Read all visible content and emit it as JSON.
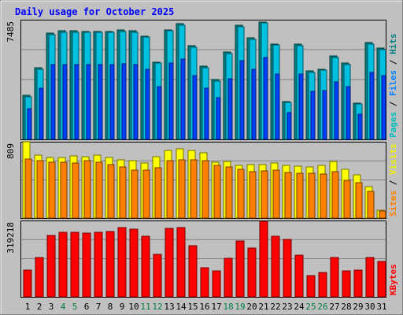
{
  "chart_data": {
    "type": "bar",
    "title": "Daily usage for October 2025",
    "days": [
      "1",
      "2",
      "3",
      "4",
      "5",
      "6",
      "7",
      "8",
      "9",
      "10",
      "11",
      "12",
      "13",
      "14",
      "15",
      "16",
      "17",
      "18",
      "19",
      "20",
      "21",
      "22",
      "23",
      "24",
      "25",
      "26",
      "27",
      "28",
      "29",
      "30",
      "31"
    ],
    "weekend_days": [
      "4",
      "5",
      "11",
      "12",
      "18",
      "19",
      "25",
      "26"
    ],
    "panels": [
      {
        "id": "hits",
        "max_label": "7485",
        "ymax": 7485,
        "right_label": [
          {
            "text": "Pages",
            "color": "#00c0c0"
          },
          {
            "text": " / ",
            "color": "#000000"
          },
          {
            "text": "Files",
            "color": "#0080ff"
          },
          {
            "text": " / ",
            "color": "#000000"
          },
          {
            "text": "Hits",
            "color": "#008080"
          }
        ],
        "series": [
          {
            "name": "Hits",
            "color": "#008080",
            "values": [
              2750,
              4490,
              6650,
              6780,
              6790,
              6770,
              6760,
              6760,
              6840,
              6780,
              6450,
              4850,
              6860,
              7230,
              5840,
              4590,
              3740,
              5470,
              7140,
              6350,
              7360,
              5960,
              2380,
              5950,
              4290,
              4390,
              5210,
              4780,
              2280,
              6040,
              5710
            ]
          },
          {
            "name": "Files",
            "color": "#00c0e0",
            "values": [
              2650,
              4390,
              6560,
              6700,
              6700,
              6680,
              6680,
              6680,
              6760,
              6700,
              6380,
              4760,
              6780,
              7140,
              5740,
              4500,
              3660,
              5380,
              7060,
              6270,
              7280,
              5890,
              2300,
              5860,
              4200,
              4310,
              5130,
              4690,
              2200,
              5960,
              5620
            ]
          },
          {
            "name": "Pages",
            "color": "#0040ff",
            "values": [
              1900,
              3200,
              4700,
              4700,
              4700,
              4700,
              4700,
              4700,
              4750,
              4700,
              4400,
              3300,
              4800,
              5000,
              4000,
              3200,
              2600,
              3800,
              4900,
              4400,
              5100,
              4100,
              1650,
              4100,
              3000,
              3050,
              3600,
              3300,
              1600,
              4200,
              4000
            ]
          }
        ]
      },
      {
        "id": "visits",
        "max_label": "809",
        "ymax": 809,
        "right_label": [
          {
            "text": "Sites",
            "color": "#ff8000"
          },
          {
            "text": " / ",
            "color": "#000000"
          },
          {
            "text": "Visits",
            "color": "#f0f000"
          }
        ],
        "series": [
          {
            "name": "Visits",
            "color": "#ffff00",
            "values": [
              809,
              665,
              640,
              645,
              660,
              650,
              665,
              645,
              615,
              605,
              580,
              650,
              720,
              730,
              715,
              695,
              595,
              600,
              555,
              565,
              570,
              585,
              555,
              550,
              545,
              560,
              600,
              515,
              455,
              335,
              85
            ]
          },
          {
            "name": "Sites",
            "color": "#ff8000",
            "values": [
              625,
              610,
              590,
              595,
              580,
              605,
              590,
              565,
              540,
              510,
              505,
              530,
              610,
              620,
              615,
              605,
              555,
              540,
              520,
              495,
              500,
              510,
              485,
              475,
              475,
              465,
              495,
              400,
              375,
              280,
              75
            ]
          }
        ]
      },
      {
        "id": "kbytes",
        "max_label": "319218",
        "ymax": 319218,
        "right_label": [
          {
            "text": "KBytes",
            "color": "#ff0000"
          }
        ],
        "series": [
          {
            "name": "KBytes",
            "color": "#ff0000",
            "values": [
              113000,
              163000,
              257000,
              270000,
              270000,
              268000,
              270000,
              272000,
              289000,
              282000,
              255000,
              178000,
              287000,
              290000,
              215000,
              122000,
              109000,
              162000,
              233000,
              204000,
              316000,
              252000,
              239000,
              173000,
              90000,
              101000,
              166000,
              109000,
              112000,
              163000,
              149000
            ]
          }
        ]
      }
    ]
  }
}
